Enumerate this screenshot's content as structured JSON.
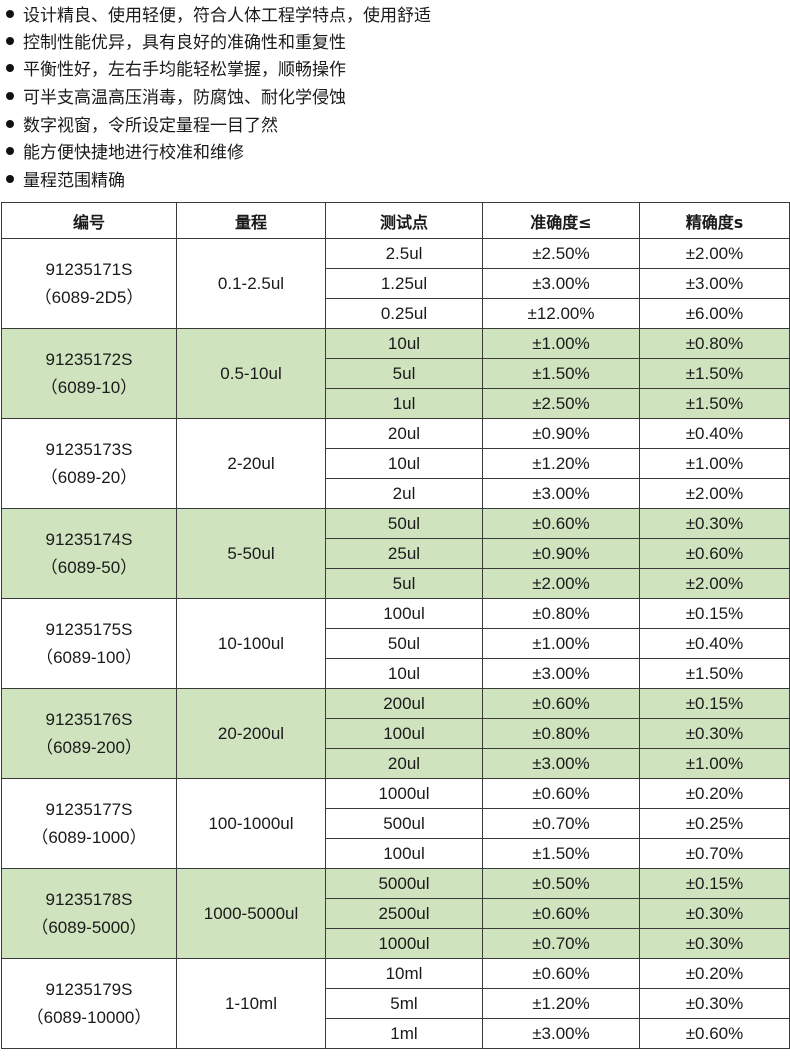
{
  "features": [
    "设计精良、使用轻便，符合人体工程学特点，使用舒适",
    "控制性能优异，具有良好的准确性和重复性",
    "平衡性好，左右手均能轻松掌握，顺畅操作",
    "可半支高温高压消毒，防腐蚀、耐化学侵蚀",
    "数字视窗，令所设定量程一目了然",
    "能方便快捷地进行校准和维修",
    "量程范围精确"
  ],
  "table": {
    "headers": [
      "编号",
      "量程",
      "测试点",
      "准确度≤",
      "精确度s"
    ],
    "groups": [
      {
        "code": "91235171S",
        "model": "（6089-2D5）",
        "range": "0.1-2.5ul",
        "rows": [
          [
            "2.5ul",
            "±2.50%",
            "±2.00%"
          ],
          [
            "1.25ul",
            "±3.00%",
            "±3.00%"
          ],
          [
            "0.25ul",
            "±12.00%",
            "±6.00%"
          ]
        ]
      },
      {
        "code": "91235172S",
        "model": "（6089-10）",
        "range": "0.5-10ul",
        "rows": [
          [
            "10ul",
            "±1.00%",
            "±0.80%"
          ],
          [
            "5ul",
            "±1.50%",
            "±1.50%"
          ],
          [
            "1ul",
            "±2.50%",
            "±1.50%"
          ]
        ]
      },
      {
        "code": "91235173S",
        "model": "（6089-20）",
        "range": "2-20ul",
        "rows": [
          [
            "20ul",
            "±0.90%",
            "±0.40%"
          ],
          [
            "10ul",
            "±1.20%",
            "±1.00%"
          ],
          [
            "2ul",
            "±3.00%",
            "±2.00%"
          ]
        ]
      },
      {
        "code": "91235174S",
        "model": "（6089-50）",
        "range": "5-50ul",
        "rows": [
          [
            "50ul",
            "±0.60%",
            "±0.30%"
          ],
          [
            "25ul",
            "±0.90%",
            "±0.60%"
          ],
          [
            "5ul",
            "±2.00%",
            "±2.00%"
          ]
        ]
      },
      {
        "code": "91235175S",
        "model": "（6089-100）",
        "range": "10-100ul",
        "rows": [
          [
            "100ul",
            "±0.80%",
            "±0.15%"
          ],
          [
            "50ul",
            "±1.00%",
            "±0.40%"
          ],
          [
            "10ul",
            "±3.00%",
            "±1.50%"
          ]
        ]
      },
      {
        "code": "91235176S",
        "model": "（6089-200）",
        "range": "20-200ul",
        "rows": [
          [
            "200ul",
            "±0.60%",
            "±0.15%"
          ],
          [
            "100ul",
            "±0.80%",
            "±0.30%"
          ],
          [
            "20ul",
            "±3.00%",
            "±1.00%"
          ]
        ]
      },
      {
        "code": "91235177S",
        "model": "（6089-1000）",
        "range": "100-1000ul",
        "rows": [
          [
            "1000ul",
            "±0.60%",
            "±0.20%"
          ],
          [
            "500ul",
            "±0.70%",
            "±0.25%"
          ],
          [
            "100ul",
            "±1.50%",
            "±0.70%"
          ]
        ]
      },
      {
        "code": "91235178S",
        "model": "（6089-5000）",
        "range": "1000-5000ul",
        "rows": [
          [
            "5000ul",
            "±0.50%",
            "±0.15%"
          ],
          [
            "2500ul",
            "±0.60%",
            "±0.30%"
          ],
          [
            "1000ul",
            "±0.70%",
            "±0.30%"
          ]
        ]
      },
      {
        "code": "91235179S",
        "model": "（6089-10000）",
        "range": "1-10ml",
        "rows": [
          [
            "10ml",
            "±0.60%",
            "±0.20%"
          ],
          [
            "5ml",
            "±1.20%",
            "±0.30%"
          ],
          [
            "1ml",
            "±3.00%",
            "±0.60%"
          ]
        ]
      }
    ]
  },
  "colors": {
    "alt_row": "#cfe3bf",
    "border": "#3a3a3a",
    "bullet": "#111111"
  }
}
